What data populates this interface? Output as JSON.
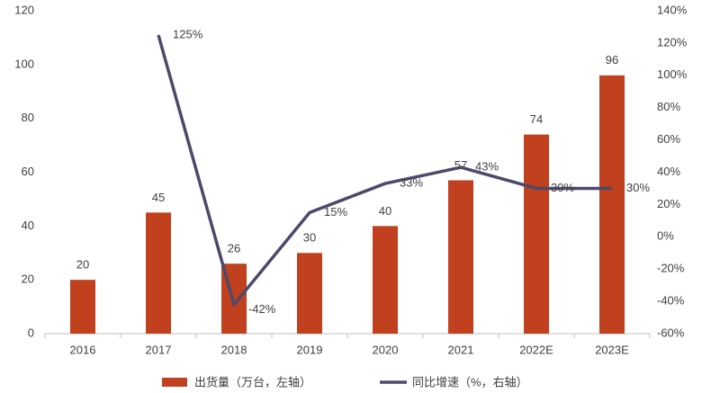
{
  "chart_data": {
    "type": "bar-line",
    "categories": [
      "2016",
      "2017",
      "2018",
      "2019",
      "2020",
      "2021",
      "2022E",
      "2023E"
    ],
    "series": [
      {
        "name": "出货量（万台，左轴）",
        "type": "bar",
        "color": "#c1401d",
        "values": [
          20,
          45,
          26,
          30,
          40,
          57,
          74,
          96
        ]
      },
      {
        "name": "同比增速（%，右轴）",
        "type": "line",
        "axis": "y2",
        "color": "#4b4a6b",
        "values": [
          null,
          125,
          -42,
          15,
          33,
          43,
          30,
          30
        ],
        "value_labels": [
          null,
          "125%",
          "-42%",
          "15%",
          "33%",
          "43%",
          "30%",
          "30%"
        ]
      }
    ],
    "ylim": [
      0,
      120
    ],
    "yticks": [
      0,
      20,
      40,
      60,
      80,
      100,
      120
    ],
    "y2lim": [
      -60,
      140
    ],
    "y2ticks": [
      {
        "value": -60,
        "label": "-60%"
      },
      {
        "value": -40,
        "label": "-40%"
      },
      {
        "value": -20,
        "label": "-20%"
      },
      {
        "value": 0,
        "label": "0%"
      },
      {
        "value": 20,
        "label": "20%"
      },
      {
        "value": 40,
        "label": "40%"
      },
      {
        "value": 60,
        "label": "60%"
      },
      {
        "value": 80,
        "label": "80%"
      },
      {
        "value": 100,
        "label": "100%"
      },
      {
        "value": 120,
        "label": "120%"
      },
      {
        "value": 140,
        "label": "140%"
      }
    ],
    "grid": false,
    "legend": "bottom"
  }
}
